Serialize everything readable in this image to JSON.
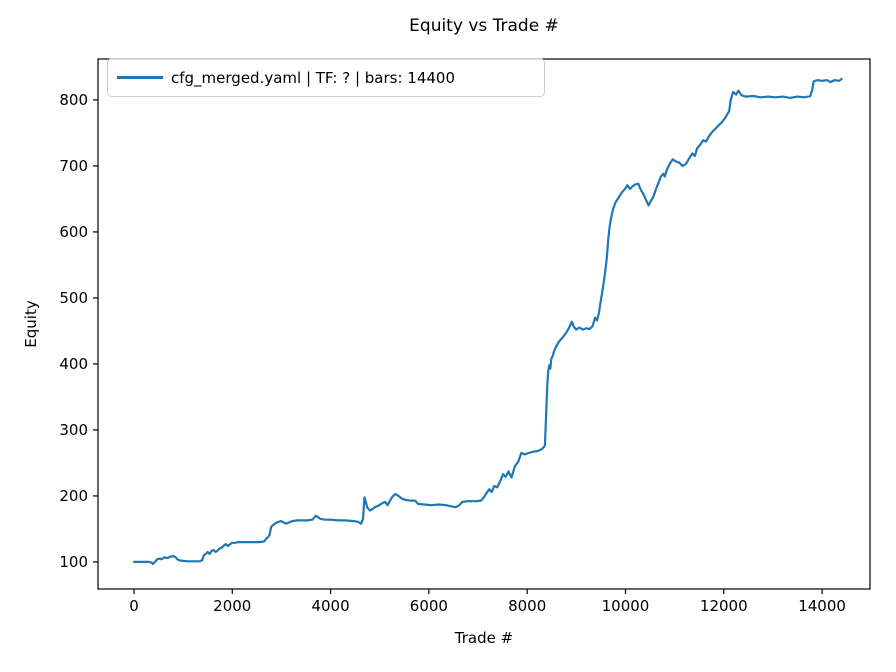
{
  "chart_data": {
    "type": "line",
    "title": "Equity vs Trade #",
    "xlabel": "Trade #",
    "ylabel": "Equity",
    "grid": false,
    "legend_position": "upper left",
    "line_color": "#1f77b4",
    "axis_color": "#000000",
    "legend_border_color": "#cccccc",
    "xlim": [
      -732,
      14975
    ],
    "ylim": [
      59,
      862
    ],
    "xticks": [
      0,
      2000,
      4000,
      6000,
      8000,
      10000,
      12000,
      14000
    ],
    "yticks": [
      100,
      200,
      300,
      400,
      500,
      600,
      700,
      800
    ],
    "series": [
      {
        "name": "cfg_merged.yaml | TF: ? | bars: 14400",
        "x": [
          0,
          150,
          300,
          360,
          390,
          430,
          470,
          520,
          560,
          620,
          680,
          740,
          800,
          850,
          880,
          950,
          1100,
          1250,
          1340,
          1390,
          1420,
          1460,
          1500,
          1540,
          1580,
          1620,
          1660,
          1700,
          1740,
          1790,
          1830,
          1870,
          1910,
          1960,
          2000,
          2060,
          2120,
          2180,
          2250,
          2350,
          2450,
          2550,
          2650,
          2700,
          2730,
          2760,
          2790,
          2830,
          2870,
          2910,
          2950,
          2990,
          3040,
          3100,
          3160,
          3230,
          3330,
          3430,
          3530,
          3630,
          3700,
          3740,
          3800,
          3900,
          4000,
          4150,
          4300,
          4450,
          4550,
          4620,
          4660,
          4690,
          4720,
          4750,
          4800,
          4850,
          4900,
          4970,
          5050,
          5110,
          5160,
          5210,
          5260,
          5320,
          5380,
          5450,
          5530,
          5620,
          5720,
          5780,
          5900,
          6050,
          6200,
          6350,
          6470,
          6550,
          6620,
          6680,
          6800,
          6950,
          7060,
          7110,
          7170,
          7230,
          7280,
          7330,
          7390,
          7450,
          7510,
          7560,
          7620,
          7680,
          7750,
          7820,
          7880,
          7950,
          8030,
          8120,
          8210,
          8300,
          8360,
          8390,
          8410,
          8430,
          8450,
          8470,
          8490,
          8520,
          8550,
          8600,
          8650,
          8720,
          8800,
          8860,
          8910,
          8950,
          9000,
          9060,
          9130,
          9200,
          9270,
          9330,
          9380,
          9420,
          9460,
          9500,
          9540,
          9580,
          9620,
          9650,
          9680,
          9710,
          9750,
          9800,
          9860,
          9930,
          10000,
          10040,
          10090,
          10140,
          10200,
          10260,
          10310,
          10360,
          10420,
          10470,
          10510,
          10560,
          10620,
          10670,
          10720,
          10770,
          10800,
          10840,
          10900,
          10960,
          11020,
          11090,
          11160,
          11230,
          11300,
          11360,
          11410,
          11460,
          11520,
          11580,
          11640,
          11700,
          11770,
          11840,
          11900,
          11960,
          12020,
          12070,
          12110,
          12140,
          12190,
          12250,
          12300,
          12360,
          12450,
          12600,
          12750,
          12900,
          13050,
          13200,
          13350,
          13500,
          13650,
          13760,
          13800,
          13830,
          13900,
          14000,
          14100,
          14170,
          14250,
          14350,
          14400
        ],
        "y": [
          100,
          100,
          100,
          99,
          97,
          100,
          104,
          105,
          104,
          107,
          106,
          108,
          109,
          107,
          104,
          102,
          101,
          101,
          101,
          103,
          110,
          112,
          115,
          112,
          117,
          118,
          115,
          117,
          120,
          122,
          125,
          127,
          124,
          127,
          129,
          129,
          130,
          130,
          130,
          130,
          130,
          130,
          131,
          136,
          138,
          141,
          153,
          156,
          158,
          160,
          161,
          162,
          160,
          158,
          160,
          162,
          163,
          163,
          163,
          164,
          170,
          168,
          165,
          164,
          164,
          163,
          163,
          162,
          161,
          158,
          165,
          198,
          190,
          182,
          178,
          180,
          183,
          185,
          189,
          191,
          186,
          193,
          199,
          203,
          200,
          196,
          194,
          193,
          193,
          188,
          187,
          186,
          187,
          186,
          184,
          183,
          186,
          191,
          192,
          192,
          193,
          197,
          204,
          210,
          206,
          215,
          213,
          222,
          233,
          229,
          237,
          228,
          245,
          252,
          265,
          263,
          265,
          267,
          268,
          271,
          276,
          330,
          368,
          390,
          398,
          393,
          408,
          412,
          420,
          428,
          434,
          440,
          448,
          456,
          464,
          456,
          452,
          455,
          452,
          454,
          453,
          457,
          470,
          466,
          477,
          497,
          515,
          535,
          560,
          590,
          610,
          622,
          635,
          645,
          652,
          660,
          666,
          671,
          665,
          669,
          672,
          673,
          664,
          658,
          648,
          640,
          646,
          652,
          665,
          674,
          684,
          688,
          684,
          694,
          703,
          710,
          707,
          705,
          700,
          703,
          712,
          719,
          715,
          727,
          732,
          739,
          737,
          745,
          752,
          757,
          762,
          766,
          772,
          778,
          783,
          800,
          812,
          808,
          814,
          807,
          805,
          806,
          804,
          805,
          804,
          805,
          803,
          805,
          804,
          806,
          815,
          828,
          830,
          829,
          830,
          827,
          830,
          829,
          832
        ]
      }
    ]
  }
}
